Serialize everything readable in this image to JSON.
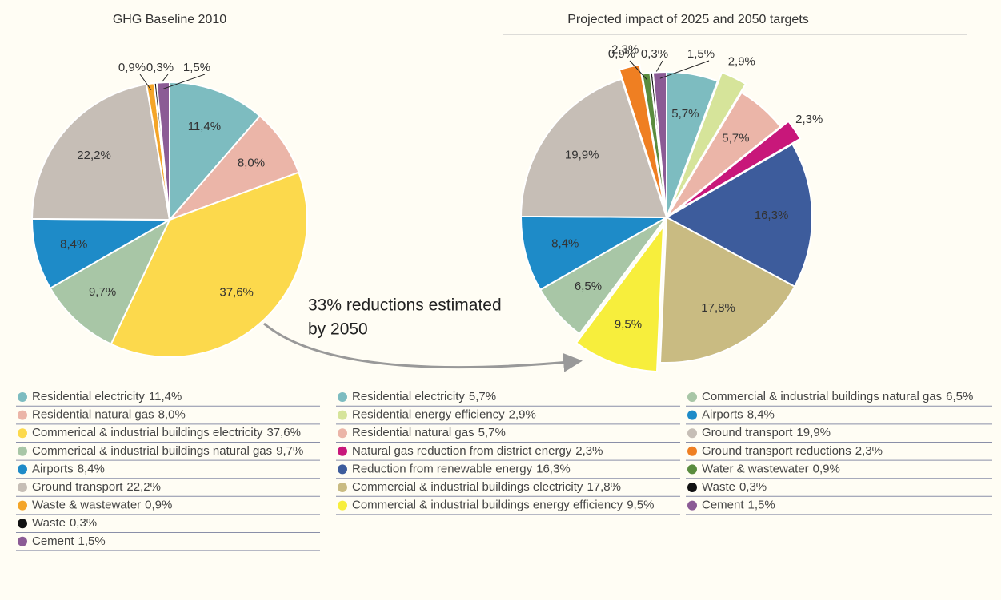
{
  "chart_data": [
    {
      "type": "pie",
      "title": "GHG Baseline 2010",
      "categories": [
        "Residential electricity",
        "Residential natural gas",
        "Commerical & industrial buildings electricity",
        "Commerical & industrial buildings natural gas",
        "Airports",
        "Ground transport",
        "Waste & wastewater",
        "Waste",
        "Cement"
      ],
      "values": [
        11.4,
        8.0,
        37.6,
        9.7,
        8.4,
        22.2,
        0.9,
        0.3,
        1.5
      ],
      "value_labels": [
        "11,4%",
        "8,0%",
        "37,6%",
        "9,7%",
        "8,4%",
        "22,2%",
        "0,9%",
        "0,3%",
        "1,5%"
      ],
      "colors": [
        "#7dbcc0",
        "#ebb5a8",
        "#fcd94c",
        "#a8c6a6",
        "#1e8bc8",
        "#c6beb6",
        "#f4a528",
        "#111111",
        "#8b5b95"
      ],
      "annotation": [
        "33% reductions estimated",
        "by 2050"
      ]
    },
    {
      "type": "pie",
      "title": "Projected impact of 2025 and 2050 targets",
      "categories": [
        "Residential electricity",
        "Residential energy efficiency",
        "Residential natural gas",
        "Natural gas reduction from district energy",
        "Reduction from renewable energy",
        "Commercial & industrial buildings electricity",
        "Commercial & industrial buildings energy efficiency",
        "Commercial & industrial buildings natural gas",
        "Airports",
        "Ground transport",
        "Ground transport reductions",
        "Water & wastewater",
        "Waste",
        "Cement"
      ],
      "values": [
        5.7,
        2.9,
        5.7,
        2.3,
        16.3,
        17.8,
        9.5,
        6.5,
        8.4,
        19.9,
        2.3,
        0.9,
        0.3,
        1.5
      ],
      "value_labels": [
        "5,7%",
        "2,9%",
        "5,7%",
        "2,3%",
        "16,3%",
        "17,8%",
        "9,5%",
        "6,5%",
        "8,4%",
        "19,9%",
        "2,3%",
        "0,9%",
        "0,3%",
        "1,5%"
      ],
      "colors": [
        "#7dbcc0",
        "#d6e49a",
        "#ebb5a8",
        "#c8177a",
        "#3d5c9c",
        "#c9bb82",
        "#f7ee3c",
        "#a8c6a6",
        "#1e8bc8",
        "#c6beb6",
        "#ef7f22",
        "#5a8c3e",
        "#111111",
        "#8b5b95"
      ],
      "exploded": [
        false,
        true,
        false,
        true,
        false,
        false,
        true,
        false,
        false,
        false,
        true,
        false,
        false,
        false
      ]
    }
  ]
}
